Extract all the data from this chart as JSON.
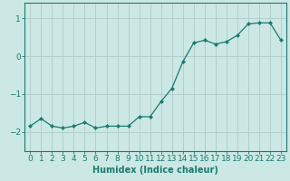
{
  "x": [
    0,
    1,
    2,
    3,
    4,
    5,
    6,
    7,
    8,
    9,
    10,
    11,
    12,
    13,
    14,
    15,
    16,
    17,
    18,
    19,
    20,
    21,
    22,
    23
  ],
  "y": [
    -1.85,
    -1.65,
    -1.85,
    -1.9,
    -1.85,
    -1.75,
    -1.9,
    -1.85,
    -1.85,
    -1.85,
    -1.6,
    -1.6,
    -1.2,
    -0.85,
    -0.15,
    0.35,
    0.42,
    0.32,
    0.38,
    0.55,
    0.85,
    0.88,
    0.88,
    0.42
  ],
  "line_color": "#1a7a6e",
  "marker": "D",
  "marker_size": 2.0,
  "bg_color": "#cce8e4",
  "grid_color": "#b0ccc8",
  "tick_color": "#1a7a6e",
  "xlabel": "Humidex (Indice chaleur)",
  "xlabel_fontsize": 7.0,
  "ylim": [
    -2.5,
    1.4
  ],
  "xlim": [
    -0.5,
    23.5
  ],
  "yticks": [
    -2,
    -1,
    0,
    1
  ],
  "xtick_labels": [
    "0",
    "1",
    "2",
    "3",
    "4",
    "5",
    "6",
    "7",
    "8",
    "9",
    "10",
    "11",
    "12",
    "13",
    "14",
    "15",
    "16",
    "17",
    "18",
    "19",
    "20",
    "21",
    "22",
    "23"
  ],
  "tick_fontsize": 6.5
}
